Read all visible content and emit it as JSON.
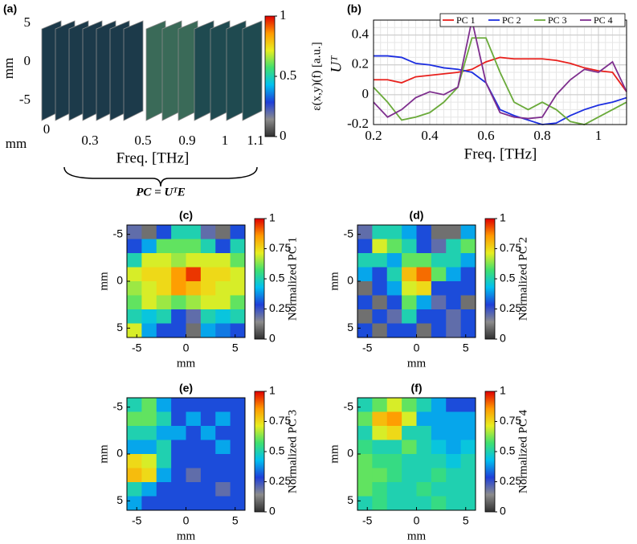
{
  "chart_data": [
    {
      "type": "slices",
      "label": "(a)",
      "ylabel": "mm",
      "corner_label": "mm",
      "xlabel": "Freq. [THz]",
      "yticks": [
        5,
        0,
        -5
      ],
      "xticks": [
        0,
        0.3,
        0.5,
        0.9,
        1,
        1.1
      ],
      "colorbar_label": "ε(x,y)(f) [a.u.]",
      "colorbar_ticks": [
        0,
        0.5,
        1
      ],
      "colormap": [
        "#303030",
        "#8c8c8c",
        "#1f3fd8",
        "#00c0f0",
        "#3fe070",
        "#e8ee20",
        "#ff9a00",
        "#e00000"
      ],
      "annotation": "PC = UᵀE"
    },
    {
      "type": "line",
      "label": "(b)",
      "ylabel": "Uᵀ",
      "xlabel": "Freq. [THz]",
      "xlim": [
        0.2,
        1.1
      ],
      "xticks": [
        0.2,
        0.4,
        0.6,
        0.8,
        1
      ],
      "ylim": [
        -0.2,
        0.5
      ],
      "yticks": [
        -0.2,
        0,
        0.2,
        0.4
      ],
      "grid": true,
      "legend": "top-right",
      "x": [
        0.2,
        0.25,
        0.3,
        0.35,
        0.4,
        0.45,
        0.5,
        0.55,
        0.6,
        0.65,
        0.7,
        0.75,
        0.8,
        0.85,
        0.9,
        0.95,
        1.0,
        1.05,
        1.1
      ],
      "series": [
        {
          "name": "PC 1",
          "color": "#e8201c",
          "values": [
            0.1,
            0.1,
            0.08,
            0.12,
            0.13,
            0.14,
            0.15,
            0.17,
            0.22,
            0.25,
            0.24,
            0.24,
            0.24,
            0.23,
            0.21,
            0.18,
            0.16,
            0.15,
            0.02
          ]
        },
        {
          "name": "PC 2",
          "color": "#1c2ee0",
          "values": [
            0.26,
            0.26,
            0.25,
            0.21,
            0.2,
            0.18,
            0.17,
            0.15,
            0.08,
            -0.1,
            -0.14,
            -0.17,
            -0.2,
            -0.19,
            -0.14,
            -0.1,
            -0.07,
            -0.05,
            -0.02
          ]
        },
        {
          "name": "PC 3",
          "color": "#6aaa3a",
          "values": [
            0.05,
            -0.05,
            -0.17,
            -0.15,
            -0.12,
            -0.05,
            0.05,
            0.38,
            0.38,
            0.15,
            -0.05,
            -0.1,
            -0.05,
            -0.1,
            -0.18,
            -0.2,
            -0.15,
            -0.1,
            -0.05
          ]
        },
        {
          "name": "PC 4",
          "color": "#7e2f8e",
          "values": [
            -0.05,
            -0.15,
            -0.1,
            -0.02,
            0.02,
            0.0,
            0.05,
            0.5,
            0.08,
            -0.12,
            -0.15,
            -0.16,
            -0.15,
            0.0,
            0.1,
            0.17,
            0.15,
            0.22,
            0.02
          ]
        }
      ]
    },
    {
      "type": "heatmap",
      "label": "(c)",
      "xlabel": "mm",
      "ylabel": "mm",
      "colorbar_label": "Normalized PC 1",
      "xlim": [
        -6,
        6
      ],
      "ylim": [
        6,
        -6
      ],
      "xticks": [
        -5,
        0,
        5
      ],
      "yticks": [
        -5,
        0,
        5
      ],
      "colorbar_ticks": [
        0,
        0.25,
        0.5,
        0.75,
        1
      ],
      "values": [
        [
          0.2,
          0.1,
          0.3,
          0.5,
          0.5,
          0.2,
          0.1,
          0.3
        ],
        [
          0.3,
          0.4,
          0.6,
          0.6,
          0.6,
          0.5,
          0.3,
          0.5
        ],
        [
          0.5,
          0.7,
          0.7,
          0.65,
          0.7,
          0.7,
          0.7,
          0.6
        ],
        [
          0.7,
          0.75,
          0.75,
          0.85,
          0.95,
          0.75,
          0.75,
          0.7
        ],
        [
          0.65,
          0.7,
          0.75,
          0.85,
          0.8,
          0.75,
          0.7,
          0.7
        ],
        [
          0.6,
          0.7,
          0.65,
          0.6,
          0.65,
          0.7,
          0.7,
          0.6
        ],
        [
          0.5,
          0.45,
          0.5,
          0.3,
          0.2,
          0.5,
          0.45,
          0.5
        ],
        [
          0.7,
          0.4,
          0.3,
          0.3,
          0.1,
          0.4,
          0.35,
          0.3
        ]
      ]
    },
    {
      "type": "heatmap",
      "label": "(d)",
      "xlabel": "mm",
      "ylabel": "mm",
      "colorbar_label": "Normalized PC 2",
      "xlim": [
        -6,
        6
      ],
      "ylim": [
        6,
        -6
      ],
      "xticks": [
        -5,
        0,
        5
      ],
      "yticks": [
        -5,
        0,
        5
      ],
      "colorbar_ticks": [
        0,
        0.25,
        0.5,
        0.75,
        1
      ],
      "values": [
        [
          0.2,
          0.5,
          0.5,
          0.4,
          0.3,
          0.1,
          0.1,
          0.4
        ],
        [
          0.3,
          0.7,
          0.6,
          0.5,
          0.3,
          0.2,
          0.5,
          0.6
        ],
        [
          0.5,
          0.5,
          0.4,
          0.6,
          0.6,
          0.5,
          0.5,
          0.4
        ],
        [
          0.4,
          0.3,
          0.5,
          0.8,
          0.9,
          0.6,
          0.4,
          0.3
        ],
        [
          0.1,
          0.3,
          0.4,
          0.7,
          0.75,
          0.3,
          0.3,
          0.3
        ],
        [
          0.3,
          0.1,
          0.3,
          0.6,
          0.4,
          0.2,
          0.3,
          0.1
        ],
        [
          0.1,
          0.3,
          0.2,
          0.5,
          0.3,
          0.3,
          0.2,
          0.3
        ],
        [
          0.3,
          0.1,
          0.3,
          0.3,
          0.1,
          0.3,
          0.2,
          0.3
        ]
      ]
    },
    {
      "type": "heatmap",
      "label": "(e)",
      "xlabel": "mm",
      "ylabel": "mm",
      "colorbar_label": "Normalized PC 3",
      "xlim": [
        -6,
        6
      ],
      "ylim": [
        6,
        -6
      ],
      "xticks": [
        -5,
        0,
        5
      ],
      "yticks": [
        -5,
        0,
        5
      ],
      "colorbar_ticks": [
        0,
        0.25,
        0.5,
        0.75,
        1
      ],
      "values": [
        [
          0.5,
          0.6,
          0.4,
          0.3,
          0.3,
          0.3,
          0.3,
          0.3
        ],
        [
          0.6,
          0.6,
          0.5,
          0.3,
          0.4,
          0.3,
          0.4,
          0.3
        ],
        [
          0.5,
          0.5,
          0.4,
          0.4,
          0.3,
          0.4,
          0.3,
          0.3
        ],
        [
          0.4,
          0.4,
          0.5,
          0.3,
          0.3,
          0.3,
          0.4,
          0.3
        ],
        [
          0.75,
          0.7,
          0.5,
          0.3,
          0.3,
          0.3,
          0.3,
          0.3
        ],
        [
          0.8,
          0.75,
          0.4,
          0.3,
          0.2,
          0.3,
          0.3,
          0.3
        ],
        [
          0.5,
          0.4,
          0.3,
          0.3,
          0.3,
          0.3,
          0.2,
          0.3
        ],
        [
          0.4,
          0.3,
          0.3,
          0.3,
          0.3,
          0.3,
          0.3,
          0.3
        ]
      ]
    },
    {
      "type": "heatmap",
      "label": "(f)",
      "xlabel": "mm",
      "ylabel": "mm",
      "colorbar_label": "Normalized PC 4",
      "xlim": [
        -6,
        6
      ],
      "ylim": [
        6,
        -6
      ],
      "xticks": [
        -5,
        0,
        5
      ],
      "yticks": [
        -5,
        0,
        5
      ],
      "colorbar_ticks": [
        0,
        0.25,
        0.5,
        0.75,
        1
      ],
      "values": [
        [
          0.5,
          0.6,
          0.7,
          0.6,
          0.5,
          0.4,
          0.3,
          0.3
        ],
        [
          0.6,
          0.8,
          0.85,
          0.7,
          0.4,
          0.4,
          0.4,
          0.4
        ],
        [
          0.5,
          0.7,
          0.75,
          0.5,
          0.5,
          0.4,
          0.4,
          0.4
        ],
        [
          0.55,
          0.5,
          0.5,
          0.6,
          0.5,
          0.45,
          0.4,
          0.45
        ],
        [
          0.6,
          0.55,
          0.55,
          0.5,
          0.5,
          0.5,
          0.45,
          0.5
        ],
        [
          0.6,
          0.6,
          0.55,
          0.5,
          0.5,
          0.55,
          0.5,
          0.5
        ],
        [
          0.6,
          0.55,
          0.5,
          0.5,
          0.55,
          0.5,
          0.5,
          0.5
        ],
        [
          0.5,
          0.55,
          0.5,
          0.5,
          0.5,
          0.55,
          0.5,
          0.5
        ]
      ]
    }
  ]
}
